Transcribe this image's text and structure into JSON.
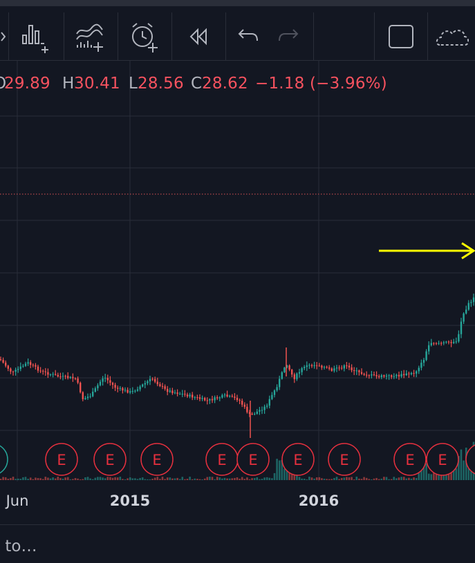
{
  "toolbar": {
    "icons": [
      "bar-indicators-add-icon",
      "indicator-templates-icon",
      "alert-add-icon",
      "replay-icon",
      "undo-icon",
      "redo-icon",
      "fullscreen-icon",
      "cloud-save-icon"
    ]
  },
  "legend": {
    "open_label": "O",
    "open_value": "29.89",
    "high_label": "H",
    "high_value": "30.41",
    "low_label": "L",
    "low_value": "28.56",
    "close_label": "C",
    "close_value": "28.62",
    "change": "−1.18 (−3.96%)"
  },
  "colors": {
    "background": "#131722",
    "up": "#26a69a",
    "down": "#ef5350",
    "legend_down": "#f7525f",
    "annotation_arrow": "#ffff00",
    "price_line": "#e05355",
    "earnings_marker": "#e5303e"
  },
  "annotation": {
    "type": "arrow",
    "direction": "right"
  },
  "earnings_marker": {
    "label": "E"
  },
  "xaxis": {
    "ticks": [
      "Jun",
      "2015",
      "2016"
    ]
  },
  "goto": {
    "text": "o to…"
  },
  "chart_data": {
    "type": "candlestick",
    "x_ticks": [
      "Jun",
      "2015",
      "2016"
    ],
    "legend": {
      "open": 29.89,
      "high": 30.41,
      "low": 28.56,
      "close": 28.62,
      "change": -1.18,
      "change_pct": -3.96
    },
    "earnings_markers_count": 11,
    "grid": true
  }
}
